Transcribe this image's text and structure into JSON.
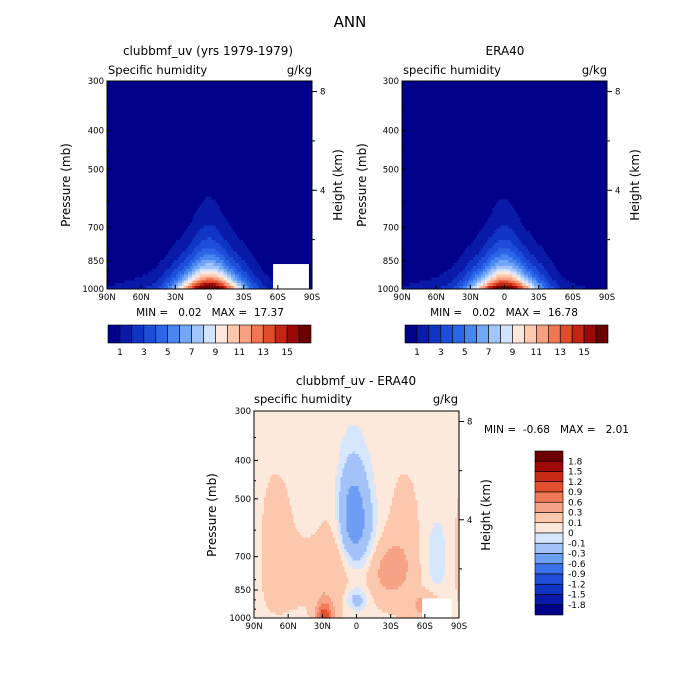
{
  "page_title": "ANN",
  "chart_data": [
    {
      "type": "heatmap",
      "id": "model",
      "title": "clubbmf_uv (yrs 1979-1979)",
      "left_label": "Specific humidity",
      "right_label": "g/kg",
      "ylabel": "Pressure (mb)",
      "ylabel_right": "Height (km)",
      "x_ticks": [
        "90N",
        "60N",
        "30N",
        "0",
        "30S",
        "60S",
        "90S"
      ],
      "y_ticks": [
        "300",
        "400",
        "500",
        "700",
        "850",
        "1000"
      ],
      "y_ticks_right": [
        "8",
        "4"
      ],
      "min_max_text": "MIN =   0.02   MAX =  17.37",
      "colorbar_labels": [
        "1",
        "3",
        "5",
        "7",
        "9",
        "11",
        "13",
        "15"
      ],
      "peak_value": 17.37,
      "masked_region": "60S-90S, 900-1000 mb"
    },
    {
      "type": "heatmap",
      "id": "obs",
      "title": "ERA40",
      "left_label": "specific humidity",
      "right_label": "g/kg",
      "ylabel": "Pressure (mb)",
      "ylabel_right": "Height (km)",
      "x_ticks": [
        "90N",
        "60N",
        "30N",
        "0",
        "30S",
        "60S",
        "90S"
      ],
      "y_ticks": [
        "300",
        "400",
        "500",
        "700",
        "850",
        "1000"
      ],
      "y_ticks_right": [
        "8",
        "4"
      ],
      "min_max_text": "MIN =   0.02   MAX =  16.78",
      "colorbar_labels": [
        "1",
        "3",
        "5",
        "7",
        "9",
        "11",
        "13",
        "15"
      ],
      "peak_value": 16.78
    },
    {
      "type": "heatmap",
      "id": "diff",
      "title": "clubbmf_uv - ERA40",
      "left_label": "specific humidity",
      "right_label": "g/kg",
      "ylabel": "Pressure (mb)",
      "ylabel_right": "Height (km)",
      "x_ticks": [
        "90N",
        "60N",
        "30N",
        "0",
        "30S",
        "60S",
        "90S"
      ],
      "y_ticks": [
        "300",
        "400",
        "500",
        "700",
        "850",
        "1000"
      ],
      "y_ticks_right": [
        "8",
        "4"
      ],
      "min_max_text": "MIN =  -0.68   MAX =   2.01",
      "colorbar_labels": [
        "1.8",
        "1.5",
        "1.2",
        "0.9",
        "0.6",
        "0.3",
        "0.1",
        "0",
        "-0.1",
        "-0.3",
        "-0.6",
        "-0.9",
        "-1.2",
        "-1.5",
        "-1.8"
      ]
    }
  ],
  "palettes": {
    "q": [
      "#00008a",
      "#0a1aa8",
      "#1034c4",
      "#1e4ed8",
      "#2c66e8",
      "#4a86f0",
      "#72a6f6",
      "#a2c6fa",
      "#d2e4fc",
      "#fce8dc",
      "#fcc8ae",
      "#f8a082",
      "#f07654",
      "#e04c2c",
      "#c42414",
      "#9a0808",
      "#6a0000"
    ],
    "diff": [
      "#00008a",
      "#0a1aa8",
      "#1034c4",
      "#1e4ed8",
      "#3a70ea",
      "#6e9ef4",
      "#a2c2f8",
      "#d6e6fc",
      "#fde9dc",
      "#fbc8ae",
      "#f7a486",
      "#f07a58",
      "#e2502e",
      "#c82a14",
      "#9e0808",
      "#6a0000"
    ]
  }
}
